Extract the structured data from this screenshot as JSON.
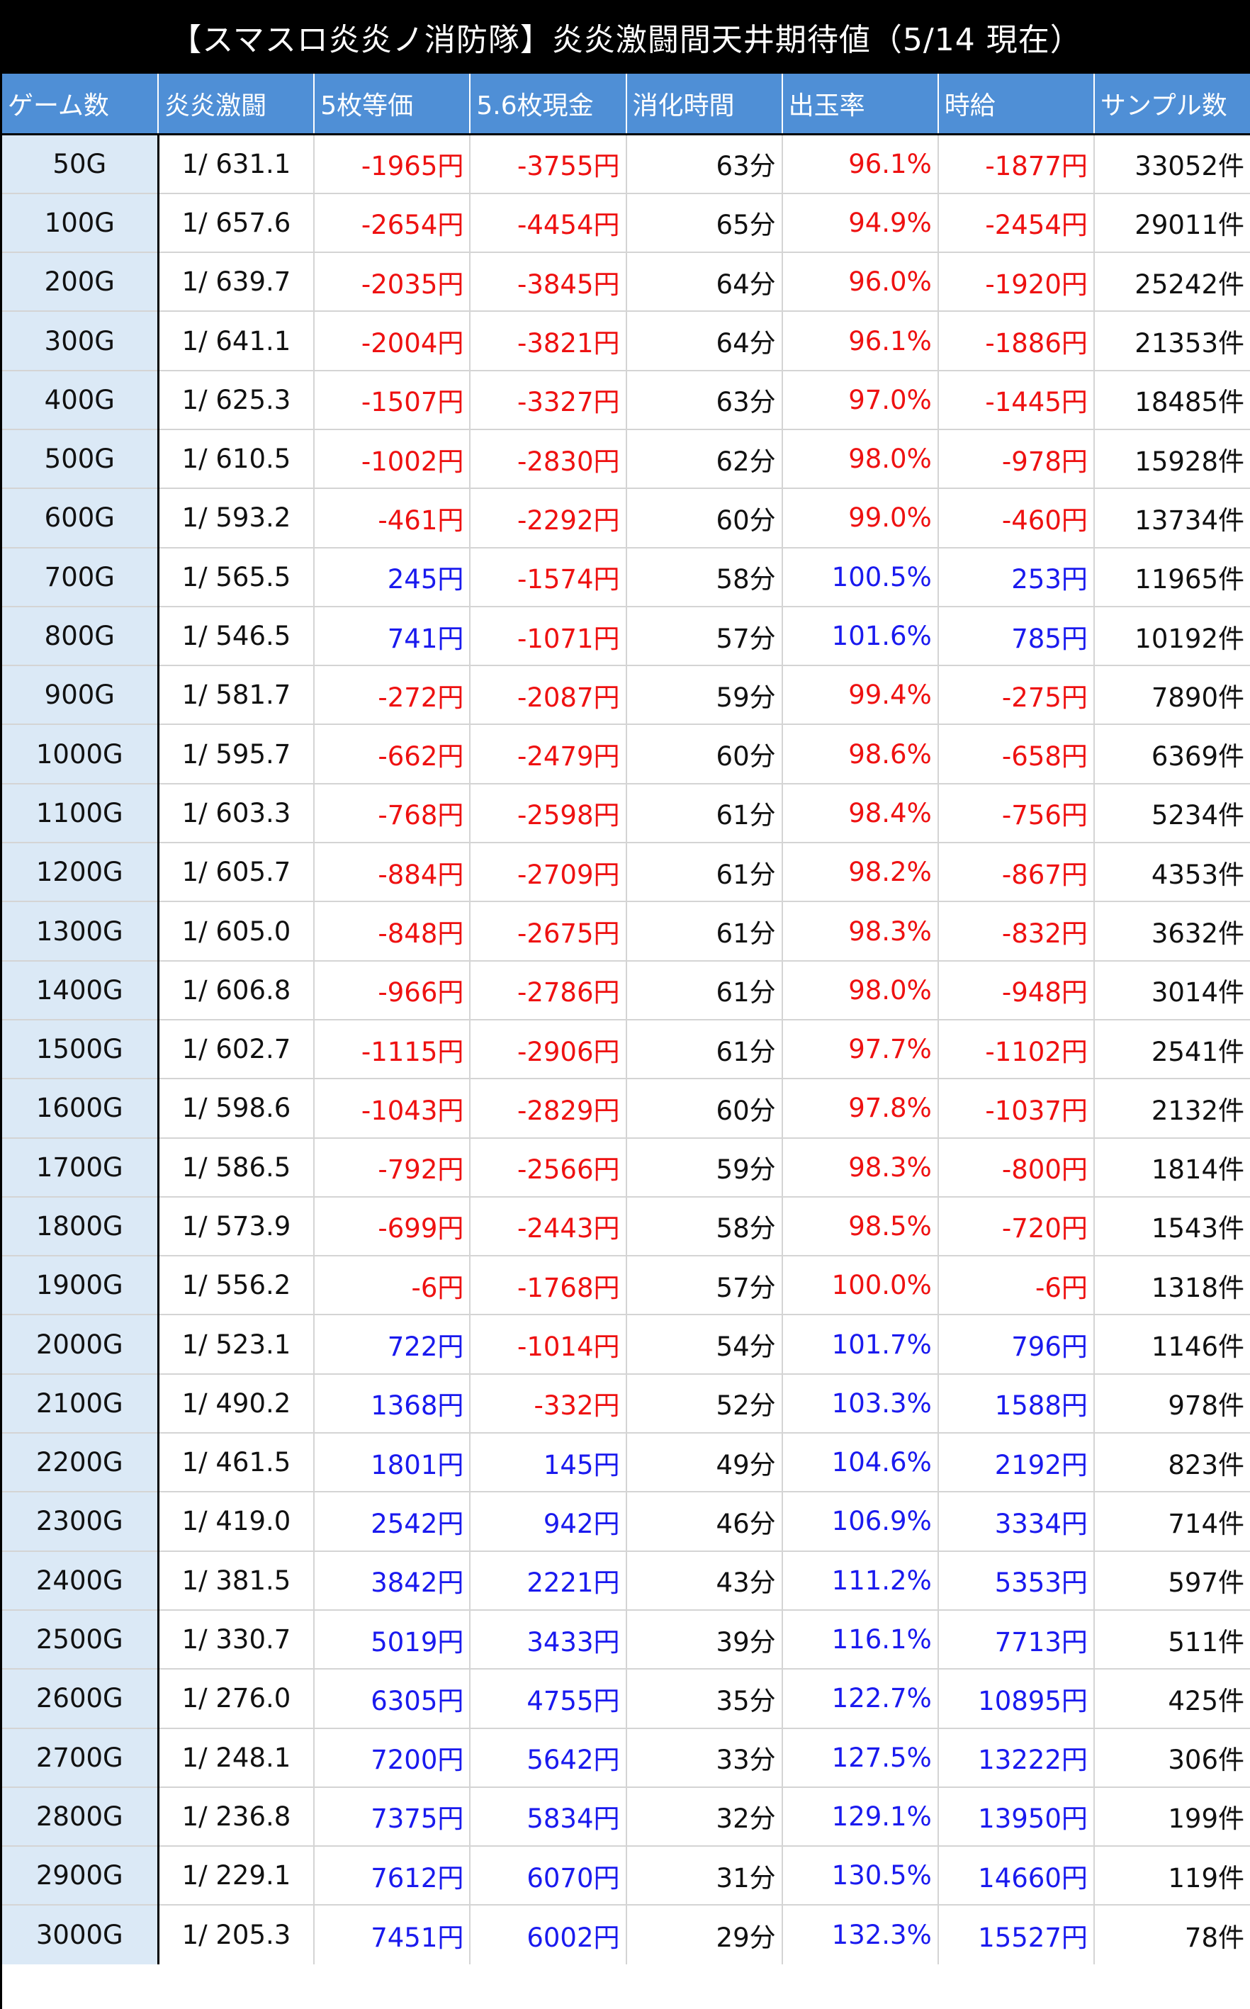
{
  "title": "【スマスロ炎炎ノ消防隊】炎炎激闘間天井期待値（5/14 現在）",
  "headers": [
    "ゲーム数",
    "炎炎激闘",
    "5枚等価",
    "5.6枚現金",
    "消化時間",
    "出玉率",
    "時給",
    "サンプル数"
  ],
  "colors": {
    "negative": "#ee1111",
    "positive": "#1a1aee",
    "header_bg": "#4f8fd6",
    "game_col_bg": "#dbe9f6"
  },
  "rows": [
    [
      "50G",
      "1/ 631.1",
      "-1965円",
      "-3755円",
      "63分",
      "96.1%",
      "-1877円",
      "33052件"
    ],
    [
      "100G",
      "1/ 657.6",
      "-2654円",
      "-4454円",
      "65分",
      "94.9%",
      "-2454円",
      "29011件"
    ],
    [
      "200G",
      "1/ 639.7",
      "-2035円",
      "-3845円",
      "64分",
      "96.0%",
      "-1920円",
      "25242件"
    ],
    [
      "300G",
      "1/ 641.1",
      "-2004円",
      "-3821円",
      "64分",
      "96.1%",
      "-1886円",
      "21353件"
    ],
    [
      "400G",
      "1/ 625.3",
      "-1507円",
      "-3327円",
      "63分",
      "97.0%",
      "-1445円",
      "18485件"
    ],
    [
      "500G",
      "1/ 610.5",
      "-1002円",
      "-2830円",
      "62分",
      "98.0%",
      "-978円",
      "15928件"
    ],
    [
      "600G",
      "1/ 593.2",
      "-461円",
      "-2292円",
      "60分",
      "99.0%",
      "-460円",
      "13734件"
    ],
    [
      "700G",
      "1/ 565.5",
      "245円",
      "-1574円",
      "58分",
      "100.5%",
      "253円",
      "11965件"
    ],
    [
      "800G",
      "1/ 546.5",
      "741円",
      "-1071円",
      "57分",
      "101.6%",
      "785円",
      "10192件"
    ],
    [
      "900G",
      "1/ 581.7",
      "-272円",
      "-2087円",
      "59分",
      "99.4%",
      "-275円",
      "7890件"
    ],
    [
      "1000G",
      "1/ 595.7",
      "-662円",
      "-2479円",
      "60分",
      "98.6%",
      "-658円",
      "6369件"
    ],
    [
      "1100G",
      "1/ 603.3",
      "-768円",
      "-2598円",
      "61分",
      "98.4%",
      "-756円",
      "5234件"
    ],
    [
      "1200G",
      "1/ 605.7",
      "-884円",
      "-2709円",
      "61分",
      "98.2%",
      "-867円",
      "4353件"
    ],
    [
      "1300G",
      "1/ 605.0",
      "-848円",
      "-2675円",
      "61分",
      "98.3%",
      "-832円",
      "3632件"
    ],
    [
      "1400G",
      "1/ 606.8",
      "-966円",
      "-2786円",
      "61分",
      "98.0%",
      "-948円",
      "3014件"
    ],
    [
      "1500G",
      "1/ 602.7",
      "-1115円",
      "-2906円",
      "61分",
      "97.7%",
      "-1102円",
      "2541件"
    ],
    [
      "1600G",
      "1/ 598.6",
      "-1043円",
      "-2829円",
      "60分",
      "97.8%",
      "-1037円",
      "2132件"
    ],
    [
      "1700G",
      "1/ 586.5",
      "-792円",
      "-2566円",
      "59分",
      "98.3%",
      "-800円",
      "1814件"
    ],
    [
      "1800G",
      "1/ 573.9",
      "-699円",
      "-2443円",
      "58分",
      "98.5%",
      "-720円",
      "1543件"
    ],
    [
      "1900G",
      "1/ 556.2",
      "-6円",
      "-1768円",
      "57分",
      "100.0%",
      "-6円",
      "1318件"
    ],
    [
      "2000G",
      "1/ 523.1",
      "722円",
      "-1014円",
      "54分",
      "101.7%",
      "796円",
      "1146件"
    ],
    [
      "2100G",
      "1/ 490.2",
      "1368円",
      "-332円",
      "52分",
      "103.3%",
      "1588円",
      "978件"
    ],
    [
      "2200G",
      "1/ 461.5",
      "1801円",
      "145円",
      "49分",
      "104.6%",
      "2192円",
      "823件"
    ],
    [
      "2300G",
      "1/ 419.0",
      "2542円",
      "942円",
      "46分",
      "106.9%",
      "3334円",
      "714件"
    ],
    [
      "2400G",
      "1/ 381.5",
      "3842円",
      "2221円",
      "43分",
      "111.2%",
      "5353円",
      "597件"
    ],
    [
      "2500G",
      "1/ 330.7",
      "5019円",
      "3433円",
      "39分",
      "116.1%",
      "7713円",
      "511件"
    ],
    [
      "2600G",
      "1/ 276.0",
      "6305円",
      "4755円",
      "35分",
      "122.7%",
      "10895円",
      "425件"
    ],
    [
      "2700G",
      "1/ 248.1",
      "7200円",
      "5642円",
      "33分",
      "127.5%",
      "13222円",
      "306件"
    ],
    [
      "2800G",
      "1/ 236.8",
      "7375円",
      "5834円",
      "32分",
      "129.1%",
      "13950円",
      "199件"
    ],
    [
      "2900G",
      "1/ 229.1",
      "7612円",
      "6070円",
      "31分",
      "130.5%",
      "14660円",
      "119件"
    ],
    [
      "3000G",
      "1/ 205.3",
      "7451円",
      "6002円",
      "29分",
      "132.3%",
      "15527円",
      "78件"
    ]
  ]
}
